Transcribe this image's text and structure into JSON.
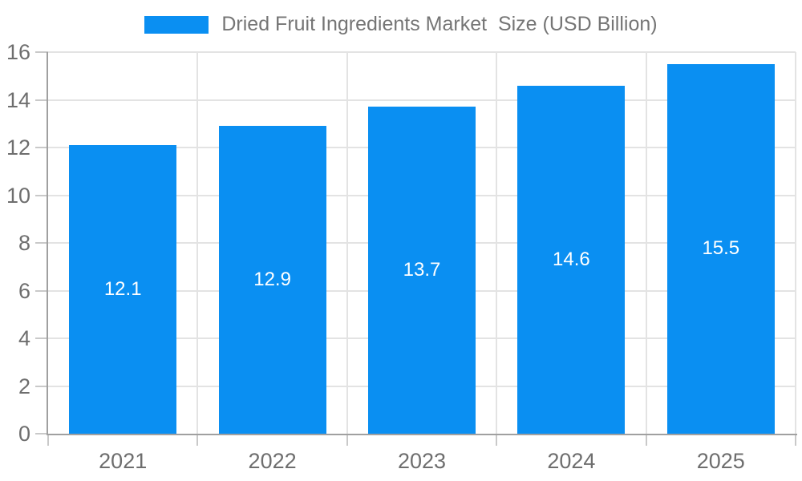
{
  "chart_data": {
    "type": "bar",
    "title": "Dried Fruit Ingredients Market  Size (USD Billion)",
    "legend_position": "top",
    "categories": [
      "2021",
      "2022",
      "2023",
      "2024",
      "2025"
    ],
    "series": [
      {
        "name": "Dried Fruit Ingredients Market  Size (USD Billion)",
        "values": [
          12.1,
          12.9,
          13.7,
          14.6,
          15.5
        ]
      }
    ],
    "bar_labels": [
      "12.1",
      "12.9",
      "13.7",
      "14.6",
      "15.5"
    ],
    "xlabel": "",
    "ylabel": "",
    "ylim": [
      0,
      16
    ],
    "ytick_step": 2,
    "ytick_labels": [
      "0",
      "2",
      "4",
      "6",
      "8",
      "10",
      "12",
      "14",
      "16"
    ],
    "grid": true,
    "colors": {
      "bar": "#0a8ff2",
      "axis": "#a0a0a0",
      "grid": "#e3e3e3",
      "tick": "#c9c9c9",
      "axis_text": "#6e6e6e",
      "legend_text": "#757575",
      "bar_label_text": "#ffffff"
    }
  }
}
